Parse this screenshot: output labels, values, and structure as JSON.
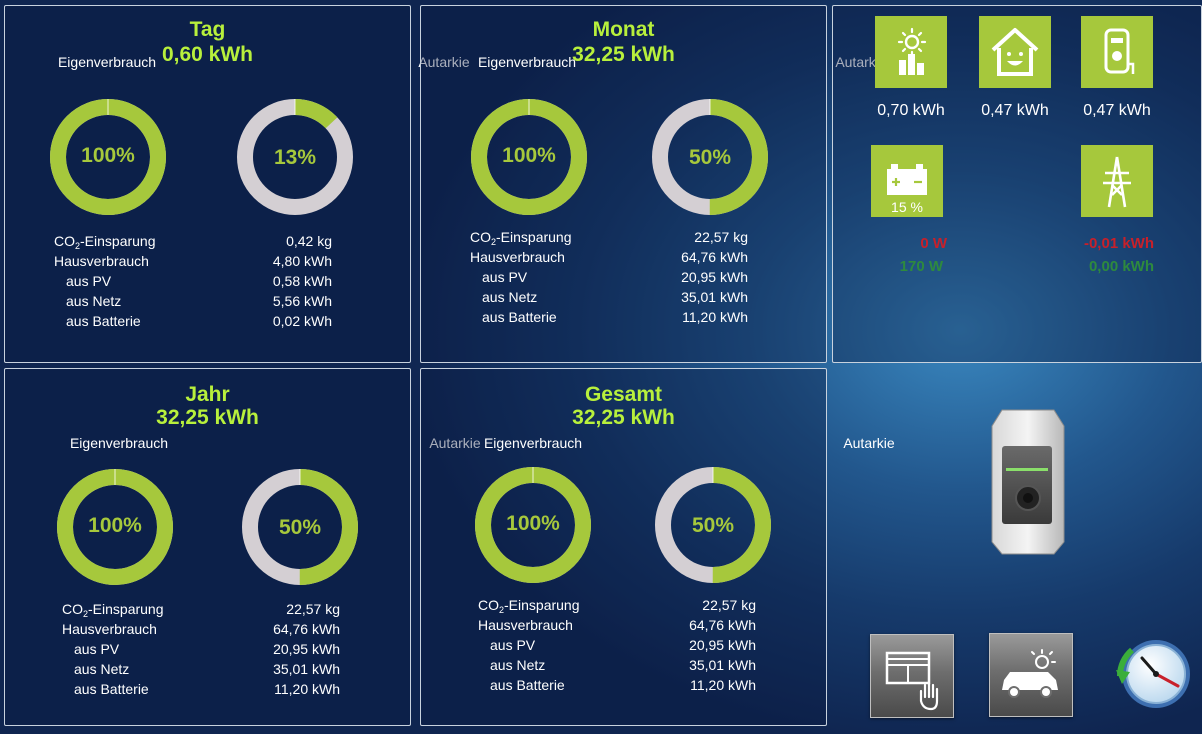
{
  "panels": [
    {
      "title": "Tag",
      "total": "0,60 kWh",
      "label_eigen": "Eigenverbrauch",
      "label_autarkie": "Autarkie",
      "eigen_pct": 100,
      "eigen_text": "100%",
      "autarkie_pct": 13,
      "autarkie_text": "13%",
      "stats": {
        "co2_label_main": "CO",
        "co2_label_sub": "2",
        "co2_label_rest": "-Einsparung",
        "co2_value": "0,42 kg",
        "haus_label": "Hausverbrauch",
        "haus_value": "4,80 kWh",
        "pv_label": "aus PV",
        "pv_value": "0,58 kWh",
        "netz_label": "aus Netz",
        "netz_value": "5,56 kWh",
        "batt_label": "aus Batterie",
        "batt_value": "0,02 kWh"
      }
    },
    {
      "title": "Monat",
      "total": "32,25 kWh",
      "label_eigen": "Eigenverbrauch",
      "label_autarkie": "Autarkie",
      "eigen_pct": 100,
      "eigen_text": "100%",
      "autarkie_pct": 50,
      "autarkie_text": "50%",
      "stats": {
        "co2_label_main": "CO",
        "co2_label_sub": "2",
        "co2_label_rest": "-Einsparung",
        "co2_value": "22,57 kg",
        "haus_label": "Hausverbrauch",
        "haus_value": "64,76 kWh",
        "pv_label": "aus PV",
        "pv_value": "20,95 kWh",
        "netz_label": "aus Netz",
        "netz_value": "35,01 kWh",
        "batt_label": "aus Batterie",
        "batt_value": "11,20 kWh"
      }
    },
    {
      "title": "Jahr",
      "total": "32,25 kWh",
      "label_eigen": "Eigenverbrauch",
      "label_autarkie": "Autarkie",
      "eigen_pct": 100,
      "eigen_text": "100%",
      "autarkie_pct": 50,
      "autarkie_text": "50%",
      "stats": {
        "co2_label_main": "CO",
        "co2_label_sub": "2",
        "co2_label_rest": "-Einsparung",
        "co2_value": "22,57 kg",
        "haus_label": "Hausverbrauch",
        "haus_value": "64,76 kWh",
        "pv_label": "aus PV",
        "pv_value": "20,95 kWh",
        "netz_label": "aus Netz",
        "netz_value": "35,01 kWh",
        "batt_label": "aus Batterie",
        "batt_value": "11,20 kWh"
      }
    },
    {
      "title": "Gesamt",
      "total": "32,25 kWh",
      "label_eigen": "Eigenverbrauch",
      "label_autarkie": "Autarkie",
      "eigen_pct": 100,
      "eigen_text": "100%",
      "autarkie_pct": 50,
      "autarkie_text": "50%",
      "stats": {
        "co2_label_main": "CO",
        "co2_label_sub": "2",
        "co2_label_rest": "-Einsparung",
        "co2_value": "22,57 kg",
        "haus_label": "Hausverbrauch",
        "haus_value": "64,76 kWh",
        "pv_label": "aus PV",
        "pv_value": "20,95 kWh",
        "netz_label": "aus Netz",
        "netz_value": "35,01 kWh",
        "batt_label": "aus Batterie",
        "batt_value": "11,20 kWh"
      }
    }
  ],
  "live": {
    "pv_value": "0,70 kWh",
    "house_value": "0,47 kWh",
    "wallbox_value": "0,47 kWh",
    "battery_soc": "15 %",
    "battery_power_red": "0 W",
    "battery_power_green": "170 W",
    "grid_red": "-0,01 kWh",
    "grid_green": "0,00 kWh"
  },
  "icons": {
    "pv": "solar-production-icon",
    "house": "house-consumption-icon",
    "wallbox": "wallbox-icon",
    "battery": "battery-icon",
    "grid": "power-pylon-icon",
    "blinds": "blinds-control-icon",
    "car": "car-light-icon",
    "clock": "clock-timer-icon"
  },
  "colors": {
    "accent_green": "#a6c83c",
    "title_green": "#b8f03c",
    "donut_track": "#d4cfd3",
    "negative_red": "#c8202a",
    "positive_green": "#2e8a3e"
  }
}
